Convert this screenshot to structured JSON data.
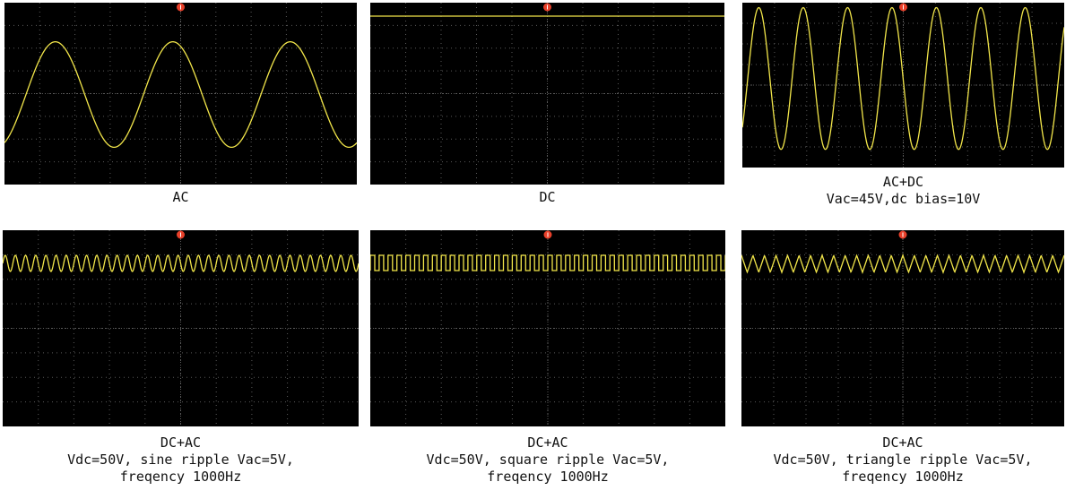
{
  "colors": {
    "trace": "#f2e64a",
    "grid": "#5a5a5a",
    "screen_bg": "#000000",
    "trigger_marker": "#e8402a"
  },
  "icons": {
    "trigger_marker": "trigger-marker-icon"
  },
  "panels": [
    {
      "waveform": "sine-ac",
      "caption": [
        "AC"
      ]
    },
    {
      "waveform": "flat-dc",
      "caption": [
        "DC"
      ]
    },
    {
      "waveform": "sine-ac-dc",
      "caption": [
        "AC+DC",
        "Vac=45V,dc bias=10V"
      ]
    },
    {
      "waveform": "sine-ripple",
      "caption": [
        "DC+AC",
        "Vdc=50V, sine ripple Vac=5V,",
        "freqency 1000Hz"
      ]
    },
    {
      "waveform": "square-ripple",
      "caption": [
        "DC+AC",
        "Vdc=50V, square ripple Vac=5V,",
        "freqency 1000Hz"
      ]
    },
    {
      "waveform": "triangle-ripple",
      "caption": [
        "DC+AC",
        "Vdc=50V, triangle ripple Vac=5V,",
        "freqency 1000Hz"
      ]
    }
  ]
}
